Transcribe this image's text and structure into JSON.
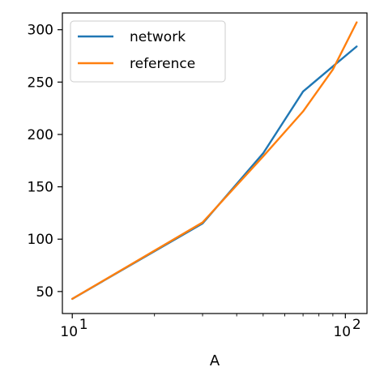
{
  "chart_data": {
    "type": "line",
    "title": "",
    "xlabel": "A",
    "ylabel": "",
    "xscale": "log",
    "xlim": [
      9.2,
      120
    ],
    "ylim": [
      29,
      316
    ],
    "x_ticks": [
      {
        "value": 10,
        "base": "10",
        "exp": "1"
      },
      {
        "value": 100,
        "base": "10",
        "exp": "2"
      }
    ],
    "y_ticks": [
      50,
      100,
      150,
      200,
      250,
      300
    ],
    "grid": false,
    "legend_position": "upper-left",
    "series": [
      {
        "name": "network",
        "color": "#1f77b4",
        "x": [
          10,
          30,
          50,
          70,
          90,
          110
        ],
        "y": [
          43,
          115,
          182,
          241,
          265,
          284
        ]
      },
      {
        "name": "reference",
        "color": "#ff7f0e",
        "x": [
          10,
          30,
          50,
          70,
          90,
          110
        ],
        "y": [
          43,
          116,
          179,
          222,
          262,
          307
        ]
      }
    ]
  }
}
